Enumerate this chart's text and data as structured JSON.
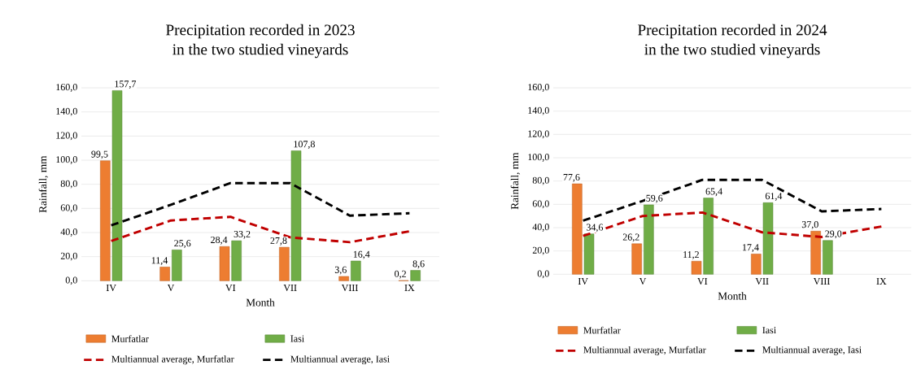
{
  "chart_data": [
    {
      "type": "bar",
      "title": "Precipitation recorded in 2023",
      "subtitle": "in the two studied vineyards",
      "xlabel": "Month",
      "ylabel": "Rainfall, mm",
      "categories": [
        "IV",
        "V",
        "VI",
        "VII",
        "VIII",
        "IX"
      ],
      "ylim": [
        0,
        160
      ],
      "yticks": [
        {
          "value": 0,
          "label": "0,0"
        },
        {
          "value": 20,
          "label": "20,0"
        },
        {
          "value": 40,
          "label": "40,0"
        },
        {
          "value": 60,
          "label": "60,0"
        },
        {
          "value": 80,
          "label": "80,0"
        },
        {
          "value": 100,
          "label": "100,0"
        },
        {
          "value": 120,
          "label": "120,0"
        },
        {
          "value": 140,
          "label": "140,0"
        },
        {
          "value": 160,
          "label": "160,0"
        }
      ],
      "grid": "y",
      "legend": "bottom",
      "series": [
        {
          "name": "Murfatlar",
          "type": "bar",
          "color": "#ed7d31",
          "values": [
            99.5,
            11.4,
            28.4,
            27.8,
            3.6,
            0.2
          ],
          "value_labels": [
            "99,5",
            "11,4",
            "28,4",
            "27,8",
            "3,6",
            "0,2"
          ]
        },
        {
          "name": "Iasi",
          "type": "bar",
          "color": "#70ad47",
          "values": [
            157.7,
            25.6,
            33.2,
            107.8,
            16.4,
            8.6
          ],
          "value_labels": [
            "157,7",
            "25,6",
            "33,2",
            "107,8",
            "16,4",
            "8,6"
          ]
        },
        {
          "name": "Multiannual average, Murfatlar",
          "type": "line",
          "line_style": "dashed",
          "color": "#c00000",
          "values": [
            33,
            50,
            53,
            36,
            32,
            41
          ]
        },
        {
          "name": "Multiannual average, Iasi",
          "type": "line",
          "line_style": "dashed",
          "color": "#000000",
          "values": [
            46,
            63,
            81,
            81,
            54,
            56
          ]
        }
      ]
    },
    {
      "type": "bar",
      "title": "Precipitation recorded in 2024",
      "subtitle": "in the two studied vineyards",
      "xlabel": "Month",
      "ylabel": "Rainfall, mm",
      "categories": [
        "IV",
        "V",
        "VI",
        "VII",
        "VIII",
        "IX"
      ],
      "ylim": [
        0,
        160
      ],
      "yticks": [
        {
          "value": 0,
          "label": "0,0"
        },
        {
          "value": 20,
          "label": "20,0"
        },
        {
          "value": 40,
          "label": "40,0"
        },
        {
          "value": 60,
          "label": "60,0"
        },
        {
          "value": 80,
          "label": "80,0"
        },
        {
          "value": 100,
          "label": "100,0"
        },
        {
          "value": 120,
          "label": "120,0"
        },
        {
          "value": 140,
          "label": "140,0"
        },
        {
          "value": 160,
          "label": "160,0"
        }
      ],
      "grid": "y",
      "legend": "bottom",
      "series": [
        {
          "name": "Murfatlar",
          "type": "bar",
          "color": "#ed7d31",
          "values": [
            77.6,
            26.2,
            11.2,
            17.4,
            37.0,
            null
          ],
          "value_labels": [
            "77,6",
            "26,2",
            "11,2",
            "17,4",
            "37,0",
            null
          ]
        },
        {
          "name": "Iasi",
          "type": "bar",
          "color": "#70ad47",
          "values": [
            34.6,
            59.6,
            65.4,
            61.4,
            29.0,
            null
          ],
          "value_labels": [
            "34,6",
            "59,6",
            "65,4",
            "61,4",
            "29,0",
            null
          ]
        },
        {
          "name": "Multiannual average, Murfatlar",
          "type": "line",
          "line_style": "dashed",
          "color": "#c00000",
          "values": [
            33,
            50,
            53,
            36,
            32,
            41
          ]
        },
        {
          "name": "Multiannual average, Iasi",
          "type": "line",
          "line_style": "dashed",
          "color": "#000000",
          "values": [
            46,
            63,
            81,
            81,
            54,
            56
          ]
        }
      ]
    }
  ]
}
